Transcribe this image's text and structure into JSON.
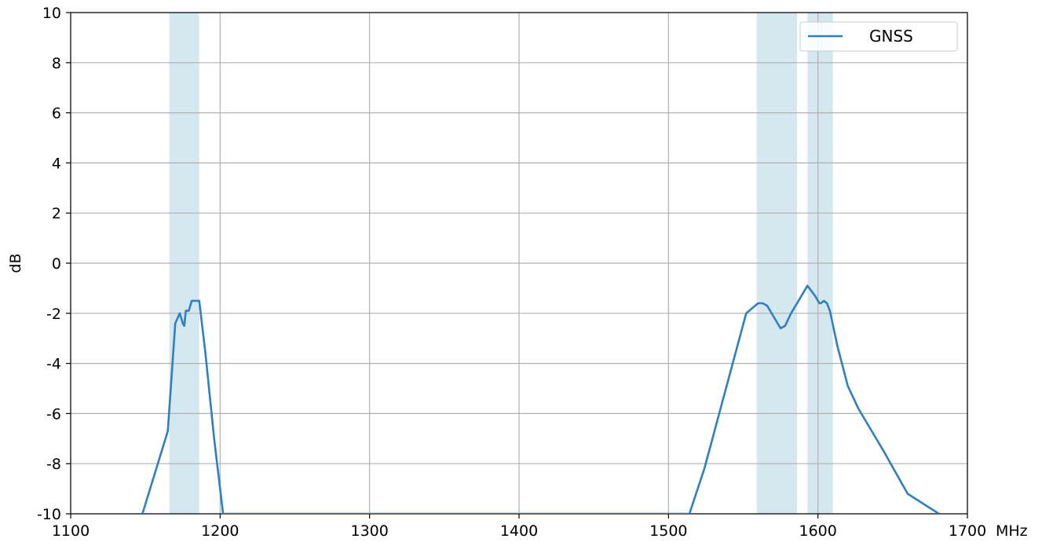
{
  "chart_data": {
    "type": "line",
    "title": "",
    "xlabel": "",
    "ylabel": "dB",
    "x_unit": "MHz",
    "xlim": [
      1100,
      1700
    ],
    "ylim": [
      -10,
      10
    ],
    "xticks": [
      1100,
      1200,
      1300,
      1400,
      1500,
      1600,
      1700
    ],
    "yticks": [
      -10,
      -8,
      -6,
      -4,
      -2,
      0,
      2,
      4,
      6,
      8,
      10
    ],
    "grid": true,
    "legend_position": "top-right",
    "shaded_bands": [
      {
        "x0": 1166,
        "x1": 1186
      },
      {
        "x0": 1559,
        "x1": 1586
      },
      {
        "x0": 1593,
        "x1": 1610
      }
    ],
    "band_color": "#d5e8f0",
    "series": [
      {
        "name": "GNSS",
        "color": "#2f7fc1",
        "x": [
          1148,
          1165,
          1170,
          1173,
          1175,
          1176,
          1177,
          1179,
          1181,
          1186,
          1190,
          1196,
          1202,
          1214,
          1514,
          1524,
          1552,
          1560,
          1563,
          1566,
          1570,
          1575,
          1578,
          1582,
          1588,
          1593,
          1598,
          1601,
          1602,
          1604,
          1606,
          1608,
          1613,
          1620,
          1627,
          1644,
          1660,
          1681
        ],
        "y": [
          -10,
          -6.7,
          -2.4,
          -2.0,
          -2.4,
          -2.5,
          -1.9,
          -1.9,
          -1.5,
          -1.5,
          -3.5,
          -7.0,
          -10,
          -10,
          -10,
          -8.2,
          -2.0,
          -1.6,
          -1.6,
          -1.7,
          -2.1,
          -2.6,
          -2.5,
          -2.0,
          -1.4,
          -0.9,
          -1.3,
          -1.6,
          -1.6,
          -1.5,
          -1.6,
          -1.9,
          -3.3,
          -4.9,
          -5.8,
          -7.5,
          -9.2,
          -10
        ]
      }
    ]
  }
}
